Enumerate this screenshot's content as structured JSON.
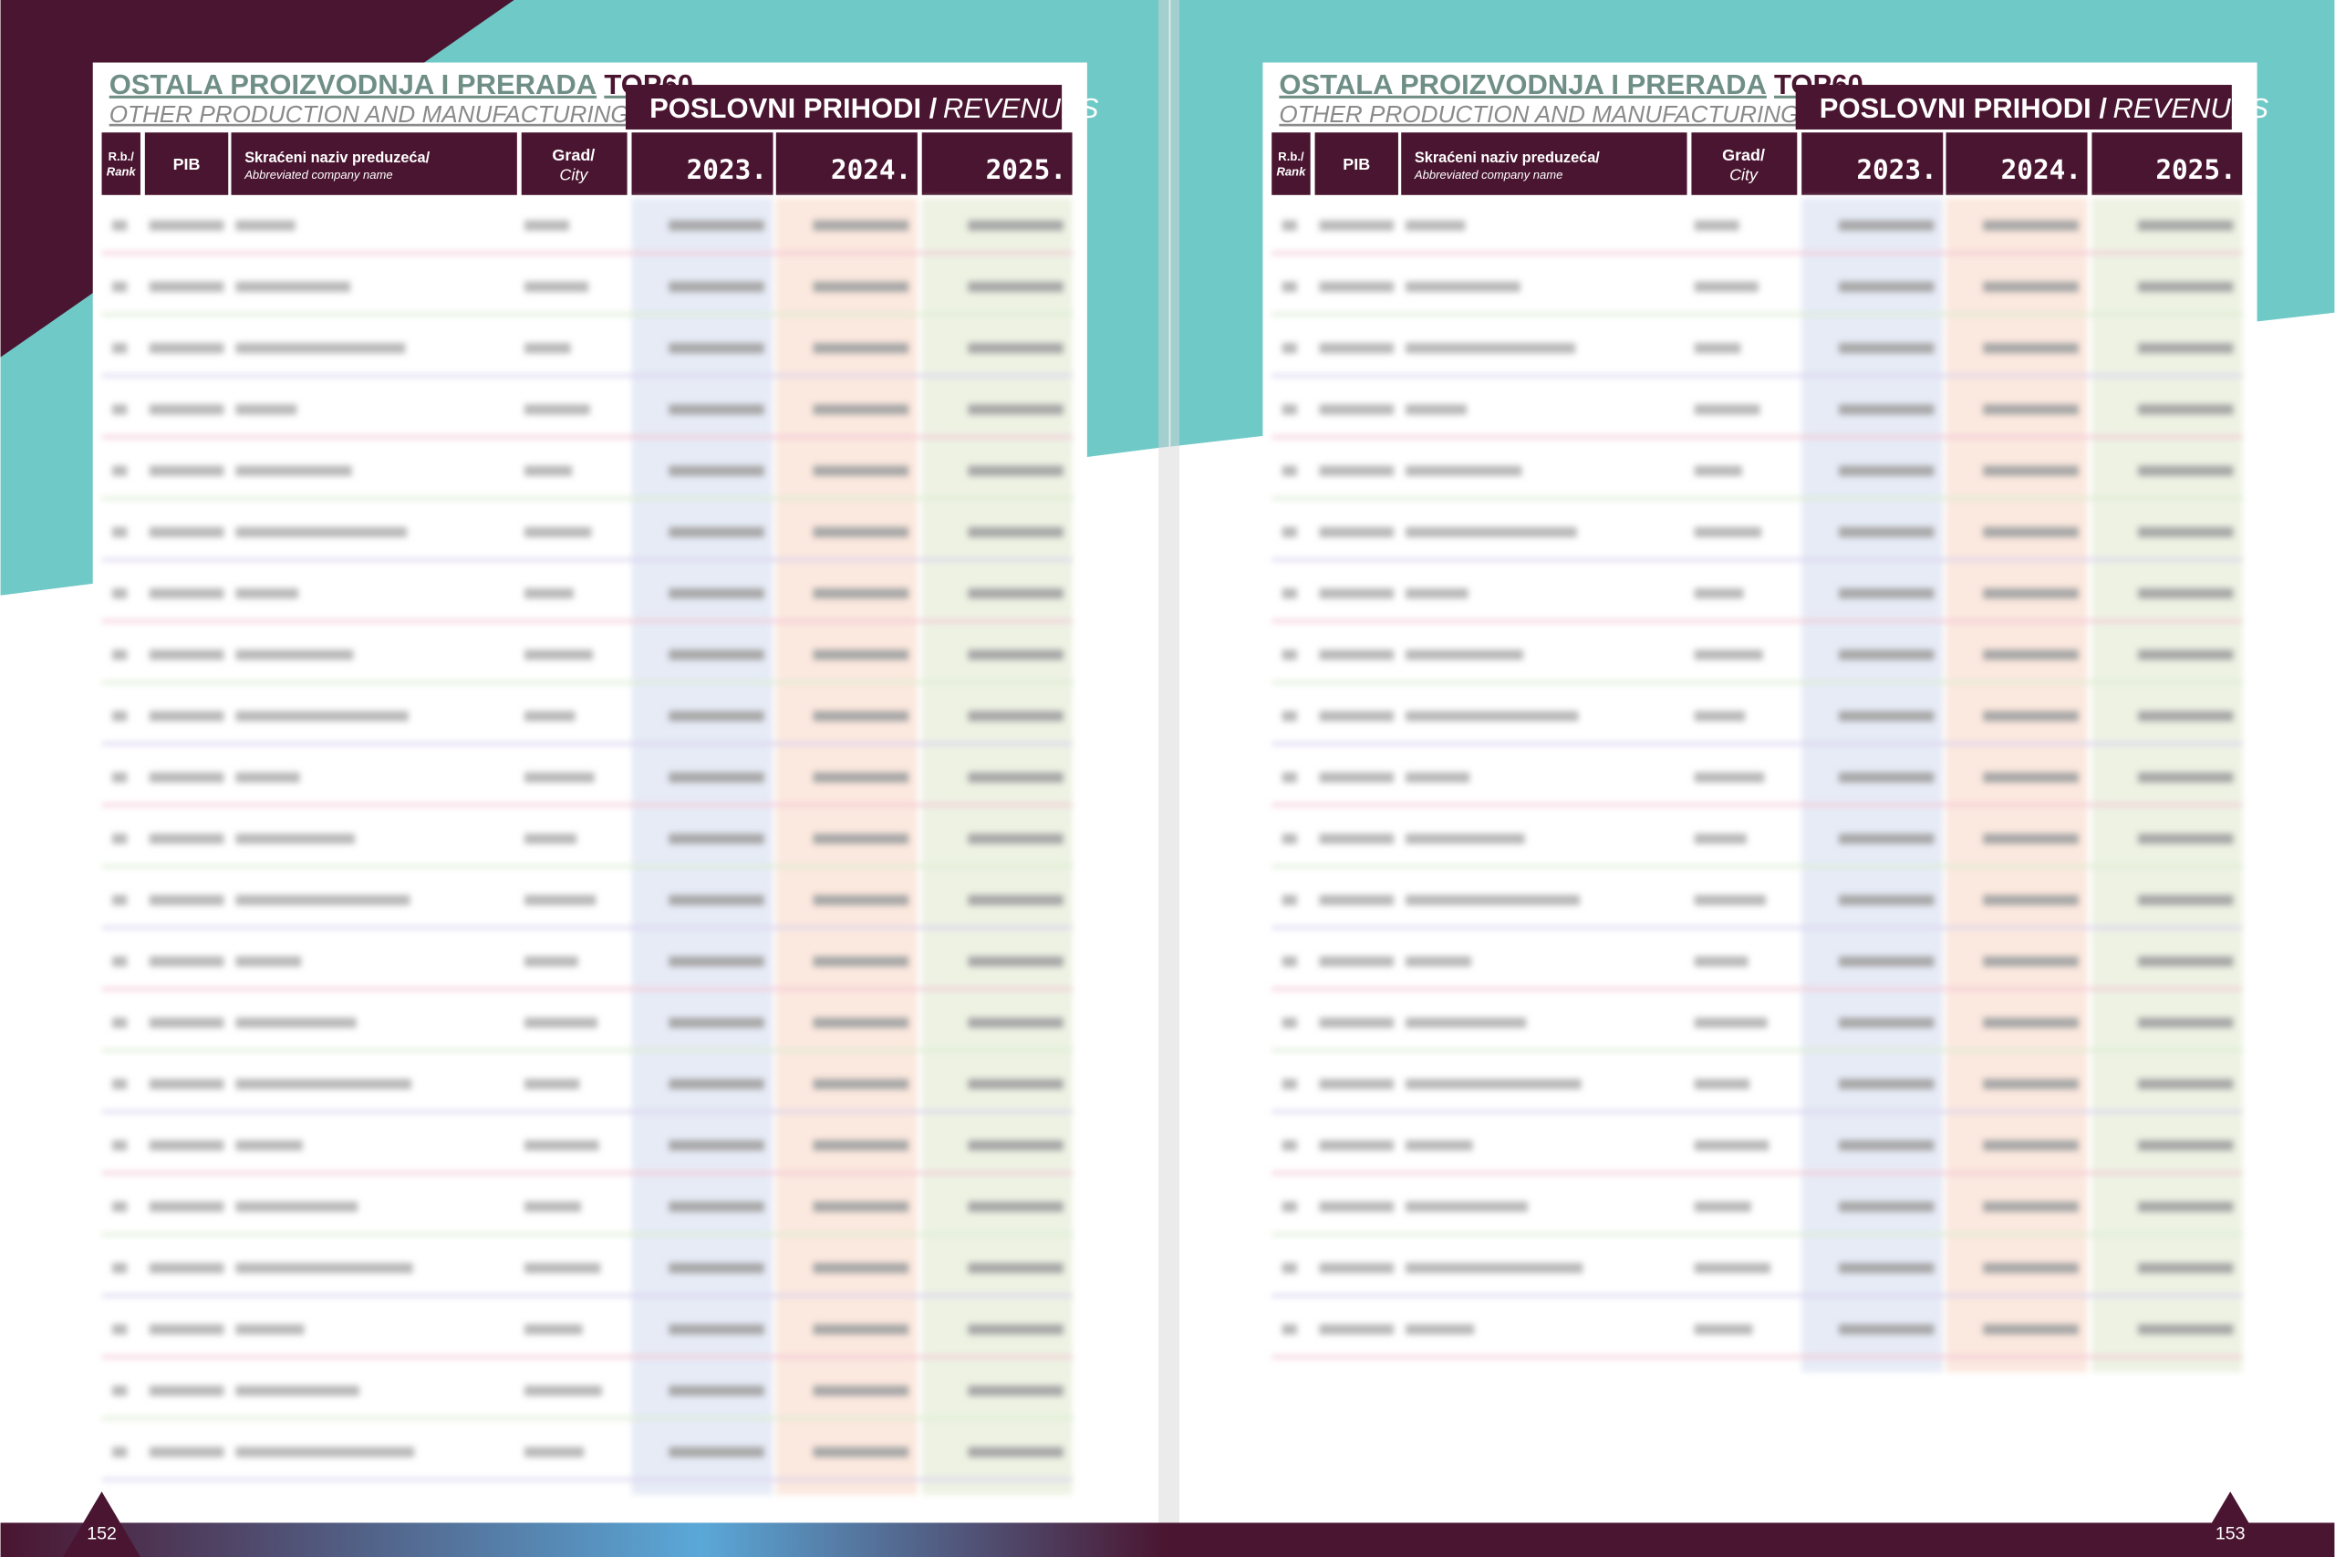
{
  "pages": [
    {
      "title": "OSTALA PROIZVODNJA I PRERADA",
      "title_tag": "TOP60",
      "subtitle": "OTHER PRODUCTION AND MANUFACTURING",
      "section": "POSLOVNI PRIHODI /",
      "section_en": "REVENUES",
      "columns": {
        "rank": "R.b./",
        "rank_en": "Rank",
        "pib": "PIB",
        "name": "Skraćeni naziv preduzeća/",
        "name_en": "Abbreviated company name",
        "city": "Grad/",
        "city_en": "City",
        "years": [
          "2023.",
          "2024.",
          "2025."
        ]
      },
      "page_number": "152"
    },
    {
      "title": "OSTALA PROIZVODNJA I PRERADA",
      "title_tag": "TOP60",
      "subtitle": "OTHER PRODUCTION AND MANUFACTURING",
      "section": "POSLOVNI PRIHODI /",
      "section_en": "REVENUES",
      "columns": {
        "rank": "R.b./",
        "rank_en": "Rank",
        "pib": "PIB",
        "name": "Skraćeni naziv preduzeća/",
        "name_en": "Abbreviated company name",
        "city": "Grad/",
        "city_en": "City",
        "years": [
          "2023.",
          "2024.",
          "2025."
        ]
      },
      "page_number": "153"
    }
  ]
}
